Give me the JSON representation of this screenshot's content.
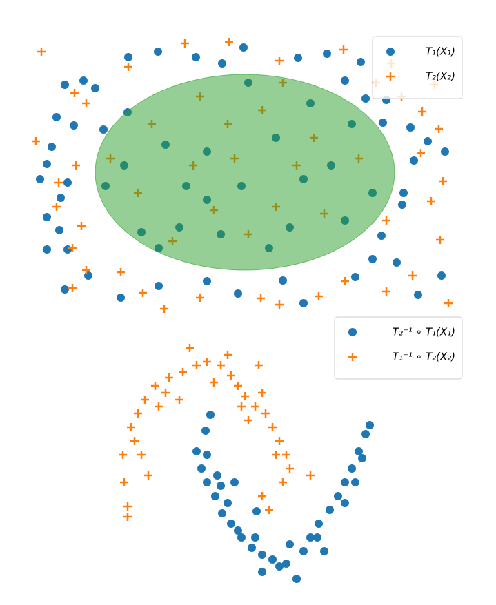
{
  "chart_data": [
    {
      "type": "scatter",
      "legend": "upper right",
      "xlim": [
        -3.05,
        3.05
      ],
      "ylim": [
        -2.05,
        2.05
      ],
      "ellipse": {
        "cx": 0,
        "cy": 0,
        "rx": 2.17,
        "ry": 1.42,
        "color": "#2ca02c"
      },
      "series": [
        {
          "name": "T₁(X₁)",
          "color": "#1f77b4",
          "marker": "o",
          "x": [
            -1.69,
            -1.26,
            -0.02,
            -0.71,
            -0.33,
            0.77,
            1.19,
            1.68,
            -2.61,
            -2.34,
            -2.17,
            -2.73,
            -2.48,
            -2.8,
            -2.87,
            -2.97,
            -2.57,
            -2.67,
            -2.87,
            -2.69,
            -2.87,
            -2.57,
            -2.27,
            -2.61,
            -1.8,
            -1.25,
            -0.55,
            -0.1,
            0.55,
            0.85,
            1.6,
            1.85,
            2.2,
            2.51,
            2.85,
            1.98,
            2.28,
            2.3,
            2.45,
            2.9,
            2.65,
            2.4,
            2.0,
            2.05,
            1.75,
            1.45,
            -2.05,
            -2.02,
            -1.5,
            -1.7,
            -1.15,
            -0.55,
            -0.05,
            0.45,
            0.95,
            1.25,
            -0.95,
            -0.35,
            0.65,
            1.45,
            0.05,
            -0.85,
            -1.75,
            1.85,
            0.35,
            -1.25,
            0.85,
            -0.55,
            1.55
          ],
          "y": [
            1.67,
            1.75,
            1.81,
            1.67,
            1.58,
            1.66,
            1.72,
            1.6,
            1.27,
            1.33,
            1.22,
            0.8,
            0.68,
            0.37,
            0.12,
            -0.1,
            -0.15,
            -0.37,
            -0.65,
            -0.84,
            -1.12,
            -1.12,
            -1.5,
            -1.7,
            -1.82,
            -1.65,
            -1.58,
            -1.76,
            -1.57,
            -1.9,
            -1.52,
            -1.26,
            -1.31,
            -1.78,
            -1.5,
            -0.92,
            -0.47,
            -0.3,
            0.17,
            0.3,
            0.45,
            0.65,
            0.72,
            1.05,
            1.07,
            1.33,
            0.62,
            -0.2,
            -0.87,
            0.87,
            0.4,
            0.3,
            -0.2,
            0.5,
            1.0,
            0.1,
            -0.8,
            -0.9,
            -0.8,
            -0.7,
            1.3,
            -0.2,
            0.1,
            -0.3,
            -1.1,
            -1.1,
            -0.1,
            -0.4,
            0.7
          ]
        },
        {
          "name": "T₂(X₂)",
          "color": "#ff7f0e",
          "marker": "+",
          "x": [
            -2.95,
            -1.69,
            -0.87,
            -0.23,
            0.5,
            1.43,
            2.12,
            -2.47,
            -2.3,
            -3.03,
            -2.7,
            -2.73,
            -2.37,
            -2.5,
            -2.3,
            -2.5,
            -1.8,
            -1.48,
            -1.17,
            -0.65,
            0.23,
            0.5,
            1.07,
            1.45,
            2.05,
            2.43,
            2.95,
            2.83,
            2.7,
            2.87,
            2.55,
            2.81,
            2.57,
            2.27,
            1.9,
            2.75,
            -2.45,
            -1.95,
            -1.35,
            -0.75,
            -0.45,
            -0.25,
            0.25,
            0.75,
            1.15,
            1.65,
            0.05,
            -1.05,
            -1.55,
            0.55,
            1.0,
            -0.15,
            -0.65,
            2.05,
            0.45
          ],
          "y": [
            1.75,
            1.53,
            1.87,
            1.89,
            1.62,
            1.78,
            1.58,
            1.15,
            1.0,
            0.45,
            -0.15,
            -0.5,
            -0.78,
            -1.1,
            -1.42,
            -1.68,
            -1.45,
            -1.75,
            -1.98,
            -1.82,
            -1.83,
            -1.92,
            -1.8,
            -1.58,
            -1.73,
            -1.5,
            -1.9,
            -0.98,
            -0.42,
            -0.13,
            0.28,
            0.63,
            0.88,
            1.1,
            1.3,
            1.27,
            0.1,
            0.2,
            0.7,
            0.1,
            -0.55,
            0.7,
            0.9,
            0.1,
            -0.6,
            0.2,
            -0.9,
            -1.0,
            -0.3,
            1.3,
            0.5,
            0.2,
            1.1,
            -0.7,
            -0.5
          ]
        }
      ]
    },
    {
      "type": "scatter",
      "legend": "upper right",
      "xlim": [
        -2,
        2
      ],
      "ylim": [
        -1.9,
        1.9
      ],
      "series": [
        {
          "name": "T₂⁻¹ ∘ T₁(X₁)",
          "color": "#1f77b4",
          "marker": "o",
          "x": [
            -0.5,
            -0.57,
            -0.7,
            -0.63,
            -0.55,
            -0.43,
            -0.33,
            -0.2,
            -0.05,
            0.1,
            0.25,
            0.4,
            0.6,
            0.75,
            0.85,
            0.95,
            1.07,
            1.23,
            1.35,
            1.45,
            1.55,
            1.65,
            1.75,
            1.81,
            -0.55,
            -0.4,
            -0.25,
            -0.1,
            0.15,
            0.65,
            0.25,
            1.15,
            1.45,
            1.6,
            1.7,
            -0.35,
            0.5,
            1.05,
            -0.15,
            0.17
          ],
          "y": [
            0.78,
            0.55,
            0.25,
            0,
            -0.2,
            -0.4,
            -0.65,
            -0.8,
            -1.0,
            -1.15,
            -1.25,
            -1.32,
            -1.38,
            -1.6,
            -1.2,
            -1.0,
            -0.8,
            -0.6,
            -0.4,
            -0.2,
            0,
            0.25,
            0.5,
            0.63,
            0.2,
            -0.1,
            -0.5,
            -0.9,
            -1.0,
            -1.1,
            -1.5,
            -1.2,
            -0.5,
            -0.2,
            0.15,
            -0.25,
            -1.42,
            -1.0,
            -0.2,
            -0.62
          ]
        },
        {
          "name": "T₁⁻¹ ∘ T₂(X₂)",
          "color": "#ff7f0e",
          "marker": "+",
          "x": [
            -1.7,
            -1.75,
            -1.77,
            -1.65,
            -1.55,
            -1.45,
            -1.3,
            -1.1,
            -0.9,
            -0.7,
            -0.55,
            -0.35,
            -0.2,
            -0.1,
            0,
            0.15,
            0.3,
            0.4,
            0.5,
            0.6,
            0.65,
            -1.4,
            -1.6,
            -1.25,
            -0.8,
            -0.25,
            0.2,
            0.05,
            0.35,
            0.95,
            0.55,
            -1.7,
            -0.95,
            -0.45,
            -0.05,
            0.25,
            -1.5,
            -1.15,
            0.45,
            0.25
          ],
          "y": [
            -0.7,
            -0.2,
            0.2,
            0.6,
            0.8,
            1.0,
            1.2,
            1.32,
            1.4,
            1.5,
            1.55,
            1.5,
            1.35,
            1.2,
            1.05,
            0.9,
            0.8,
            0.6,
            0.4,
            0.2,
            0,
            -0.1,
            0.4,
            0.9,
            1.75,
            1.65,
            1.5,
            0.7,
            -0.6,
            -0.1,
            -0.2,
            -0.55,
            1.0,
            1.25,
            0.9,
            1.1,
            0.2,
            1.1,
            0.2,
            -0.4
          ]
        }
      ]
    }
  ]
}
